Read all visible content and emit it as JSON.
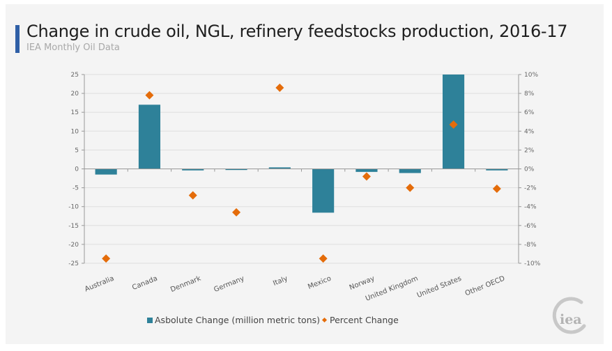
{
  "header": {
    "title": "Change in crude oil, NGL, refinery feedstocks production, 2016-17",
    "subtitle": "IEA Monthly Oil Data",
    "accent_color": "#2f5fa6"
  },
  "logo": {
    "text": "iea",
    "icon": "iea-logo-icon"
  },
  "chart_data": {
    "type": "bar",
    "title": "Change in crude oil, NGL, refinery feedstocks production, 2016-17",
    "subtitle": "IEA Monthly Oil Data",
    "categories": [
      "Australia",
      "Canada",
      "Denmark",
      "Germany",
      "Italy",
      "Mexico",
      "Norway",
      "United Kingdom",
      "United States",
      "Other OECD"
    ],
    "series": [
      {
        "name": "Asbolute Change (million metric tons)",
        "type": "bar",
        "axis": "left",
        "color": "#2e8199",
        "values": [
          -1.5,
          17.0,
          -0.4,
          -0.3,
          0.4,
          -11.6,
          -0.8,
          -1.1,
          25.0,
          -0.4
        ]
      },
      {
        "name": "Percent Change",
        "type": "scatter",
        "marker": "diamond",
        "axis": "right",
        "color": "#e46c0a",
        "values": [
          -9.5,
          7.8,
          -2.8,
          -4.6,
          8.6,
          -9.5,
          -0.8,
          -2.0,
          4.7,
          -2.1
        ]
      }
    ],
    "left_axis": {
      "label": "",
      "ylim": [
        -25,
        25
      ],
      "ticks": [
        "25",
        "20",
        "15",
        "10",
        "5",
        "0",
        "-5",
        "-10",
        "-15",
        "-20",
        "-25"
      ],
      "tick_values": [
        25,
        20,
        15,
        10,
        5,
        0,
        -5,
        -10,
        -15,
        -20,
        -25
      ]
    },
    "right_axis": {
      "label": "",
      "ylim": [
        -10,
        10
      ],
      "ticks": [
        "10%",
        "8%",
        "6%",
        "4%",
        "2%",
        "0%",
        "-2%",
        "-4%",
        "-6%",
        "-8%",
        "-10%"
      ]
    },
    "xlabel": "",
    "grid": true,
    "legend": {
      "position": "bottom",
      "items": [
        "Asbolute Change (million metric tons)",
        "Percent Change"
      ]
    }
  }
}
